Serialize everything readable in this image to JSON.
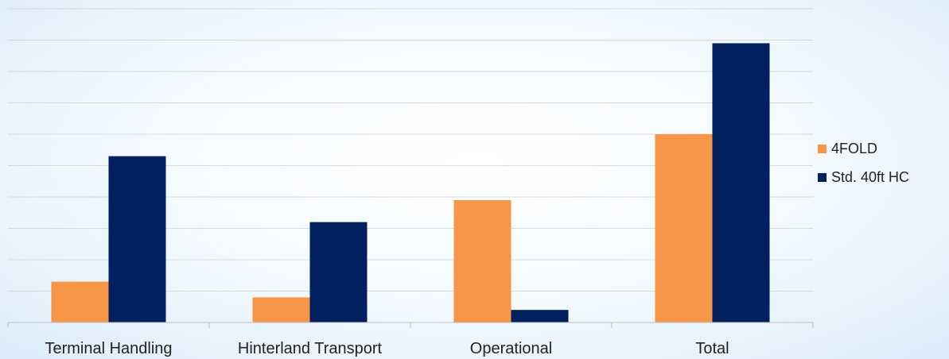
{
  "chart_data": {
    "type": "bar",
    "categories": [
      "Terminal Handling",
      "Hinterland Transport",
      "Operational",
      "Total"
    ],
    "series": [
      {
        "name": "4FOLD",
        "color": "#F79646",
        "values": [
          1.3,
          0.8,
          3.9,
          6.0
        ]
      },
      {
        "name": "Std. 40ft HC",
        "color": "#002060",
        "values": [
          5.3,
          3.2,
          0.4,
          8.9
        ]
      }
    ],
    "ylim": [
      0,
      10
    ],
    "grid": true,
    "legend_position": "right"
  }
}
